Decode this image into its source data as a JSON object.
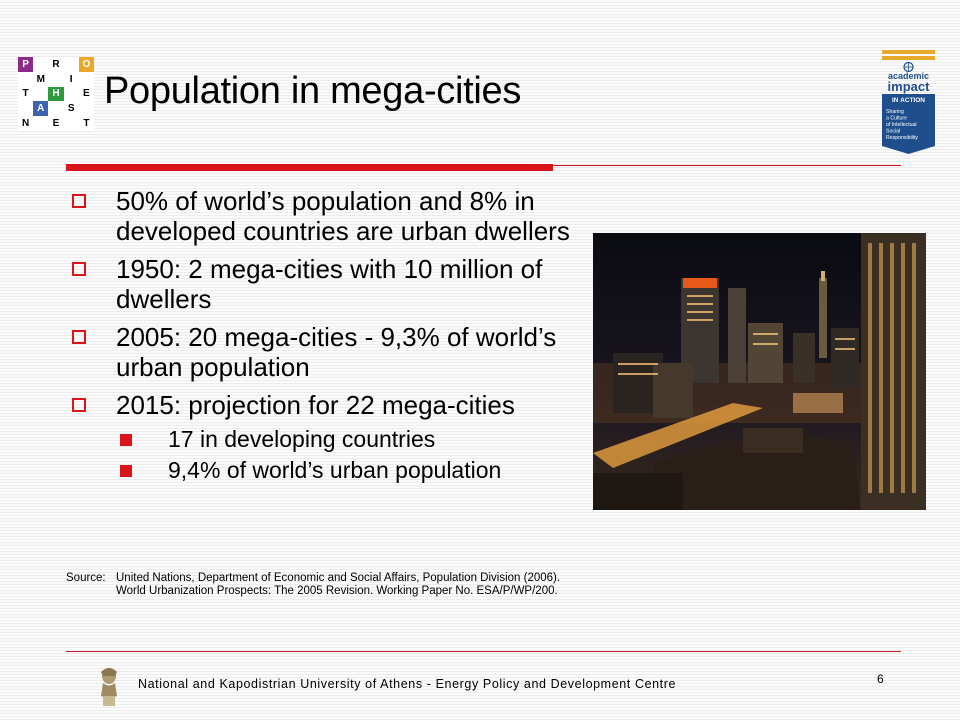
{
  "logo": {
    "cells": [
      {
        "t": "P",
        "bg": "#8b2a8a",
        "fg": "#ffffff"
      },
      {
        "t": "",
        "bg": "#ffffff",
        "fg": "#000"
      },
      {
        "t": "R",
        "bg": "#ffffff",
        "fg": "#000"
      },
      {
        "t": "",
        "bg": "#ffffff",
        "fg": "#000"
      },
      {
        "t": "O",
        "bg": "#e8a82a",
        "fg": "#ffffff"
      },
      {
        "t": "",
        "bg": "#ffffff",
        "fg": "#000"
      },
      {
        "t": "M",
        "bg": "#ffffff",
        "fg": "#000"
      },
      {
        "t": "",
        "bg": "#ffffff",
        "fg": "#000"
      },
      {
        "t": "I",
        "bg": "#ffffff",
        "fg": "#000"
      },
      {
        "t": "",
        "bg": "#ffffff",
        "fg": "#000"
      },
      {
        "t": "T",
        "bg": "#ffffff",
        "fg": "#000"
      },
      {
        "t": "",
        "bg": "#ffffff",
        "fg": "#000"
      },
      {
        "t": "H",
        "bg": "#2d9a3e",
        "fg": "#ffffff"
      },
      {
        "t": "",
        "bg": "#ffffff",
        "fg": "#000"
      },
      {
        "t": "E",
        "bg": "#ffffff",
        "fg": "#000"
      },
      {
        "t": "",
        "bg": "#ffffff",
        "fg": "#000"
      },
      {
        "t": "A",
        "bg": "#3a63b0",
        "fg": "#ffffff"
      },
      {
        "t": "",
        "bg": "#ffffff",
        "fg": "#000"
      },
      {
        "t": "S",
        "bg": "#ffffff",
        "fg": "#000"
      },
      {
        "t": "",
        "bg": "#ffffff",
        "fg": "#000"
      },
      {
        "t": "N",
        "bg": "#ffffff",
        "fg": "#000"
      },
      {
        "t": "",
        "bg": "#ffffff",
        "fg": "#000"
      },
      {
        "t": "E",
        "bg": "#ffffff",
        "fg": "#000"
      },
      {
        "t": "",
        "bg": "#ffffff",
        "fg": "#000"
      },
      {
        "t": "T",
        "bg": "#ffffff",
        "fg": "#000"
      }
    ]
  },
  "title": "Population in mega-cities",
  "badge": {
    "line1": "academic",
    "line2": "impact",
    "line3": "IN ACTION",
    "tagline": [
      "Sharing",
      "a Culture",
      "of Intellectual",
      "Social",
      "Responsibility"
    ],
    "icon": "un-emblem-icon"
  },
  "bullets": [
    {
      "text": "50% of world’s population and 8% in developed countries are urban dwellers",
      "sub": []
    },
    {
      "text": "1950: 2 mega-cities with 10 million of dwellers",
      "sub": []
    },
    {
      "text": "2005: 20 mega-cities - 9,3% of world’s urban population",
      "sub": []
    },
    {
      "text": "2015: projection for 22 mega-cities",
      "sub": [
        "17 in developing countries",
        "9,4% of world’s urban population"
      ]
    }
  ],
  "source": {
    "label": "Source:",
    "text": "United Nations, Department of Economic and Social Affairs, Population Division (2006). World Urbanization Prospects: The 2005 Revision. Working Paper No. ESA/P/WP/200."
  },
  "footer": "National and Kapodistrian University of Athens - Energy Policy and Development Centre",
  "page_number": "6",
  "colors": {
    "accent": "#d9151b",
    "badge_blue": "#1f4e8c"
  }
}
